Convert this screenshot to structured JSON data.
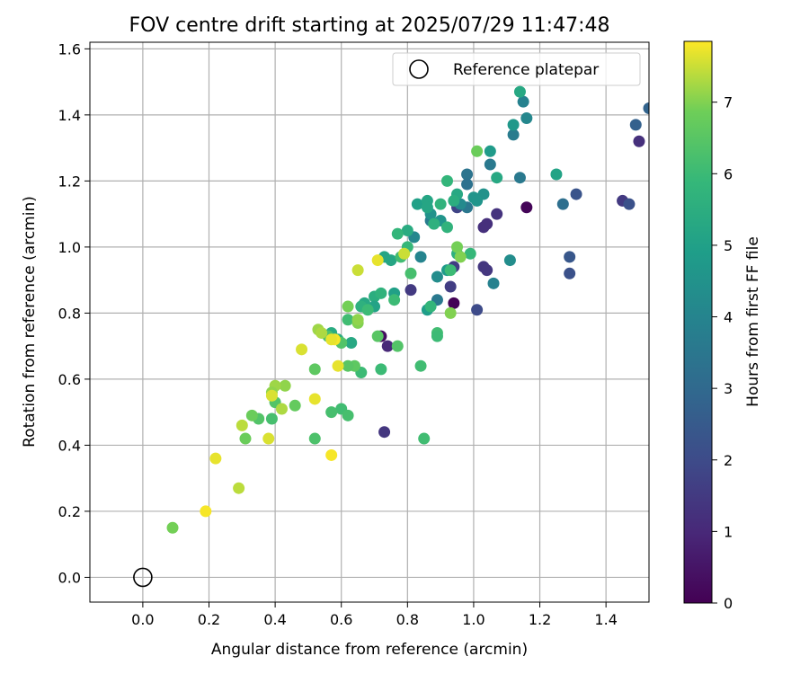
{
  "chart_data": {
    "type": "scatter",
    "title": "FOV centre drift starting at 2025/07/29 11:47:48",
    "xlabel": "Angular distance from reference (arcmin)",
    "ylabel": "Rotation from reference (arcmin)",
    "xlim": [
      -0.16,
      1.53
    ],
    "ylim": [
      -0.075,
      1.62
    ],
    "xticks": [
      "0.0",
      "0.2",
      "0.4",
      "0.6",
      "0.8",
      "1.0",
      "1.2",
      "1.4"
    ],
    "yticks": [
      "0.0",
      "0.2",
      "0.4",
      "0.6",
      "0.8",
      "1.0",
      "1.2",
      "1.4",
      "1.6"
    ],
    "grid": true,
    "legend": {
      "position": "upper-right",
      "entries": [
        "Reference platepar"
      ]
    },
    "colorbar": {
      "label": "Hours from first FF file",
      "colormap": "viridis",
      "range": [
        0,
        7.85
      ],
      "ticks": [
        "0",
        "1",
        "2",
        "3",
        "4",
        "5",
        "6",
        "7"
      ]
    },
    "reference_point": {
      "x": 0.0,
      "y": 0.0
    },
    "points": [
      [
        1.16,
        1.12,
        0.1
      ],
      [
        0.94,
        0.83,
        0.05
      ],
      [
        1.5,
        1.32,
        1.2
      ],
      [
        1.45,
        1.14,
        1.5
      ],
      [
        0.73,
        0.44,
        1.4
      ],
      [
        0.74,
        0.7,
        1.0
      ],
      [
        0.72,
        0.73,
        0.3
      ],
      [
        1.03,
        1.06,
        1.2
      ],
      [
        1.04,
        1.07,
        1.2
      ],
      [
        1.07,
        1.1,
        1.3
      ],
      [
        1.03,
        0.94,
        1.4
      ],
      [
        1.04,
        0.93,
        1.4
      ],
      [
        0.94,
        0.94,
        1.6
      ],
      [
        0.93,
        0.88,
        1.6
      ],
      [
        0.81,
        0.87,
        1.5
      ],
      [
        0.95,
        1.12,
        1.8
      ],
      [
        1.01,
        0.81,
        2.0
      ],
      [
        1.47,
        1.13,
        2.2
      ],
      [
        1.31,
        1.16,
        2.3
      ],
      [
        1.29,
        0.97,
        2.4
      ],
      [
        1.29,
        0.92,
        2.2
      ],
      [
        1.53,
        1.42,
        2.8
      ],
      [
        1.49,
        1.37,
        2.7
      ],
      [
        1.27,
        1.13,
        3.2
      ],
      [
        0.89,
        0.84,
        3.6
      ],
      [
        1.06,
        0.89,
        3.9
      ],
      [
        1.14,
        1.21,
        3.6
      ],
      [
        1.12,
        1.34,
        3.7
      ],
      [
        1.05,
        1.25,
        3.6
      ],
      [
        0.98,
        1.22,
        3.4
      ],
      [
        0.98,
        1.19,
        3.3
      ],
      [
        0.98,
        1.12,
        3.5
      ],
      [
        0.87,
        1.08,
        3.7
      ],
      [
        0.84,
        0.97,
        4.0
      ],
      [
        0.82,
        1.03,
        4.1
      ],
      [
        0.96,
        1.13,
        4.2
      ],
      [
        1.16,
        1.39,
        4.1
      ],
      [
        1.15,
        1.44,
        3.9
      ],
      [
        1.11,
        0.96,
        4.3
      ],
      [
        1.12,
        1.37,
        4.7
      ],
      [
        1.05,
        1.29,
        4.8
      ],
      [
        1.03,
        1.16,
        4.5
      ],
      [
        1.0,
        1.15,
        4.6
      ],
      [
        1.01,
        1.14,
        4.6
      ],
      [
        0.9,
        1.08,
        4.6
      ],
      [
        0.87,
        1.1,
        4.5
      ],
      [
        0.89,
        0.91,
        4.3
      ],
      [
        0.92,
        0.93,
        4.8
      ],
      [
        0.86,
        0.81,
        4.9
      ],
      [
        0.83,
        1.13,
        5.0
      ],
      [
        0.86,
        1.14,
        5.2
      ],
      [
        1.14,
        1.47,
        5.3
      ],
      [
        1.07,
        1.21,
        5.3
      ],
      [
        1.25,
        1.22,
        5.1
      ],
      [
        0.95,
        1.16,
        5.3
      ],
      [
        0.94,
        1.14,
        5.5
      ],
      [
        0.86,
        1.12,
        5.2
      ],
      [
        0.88,
        1.07,
        5.6
      ],
      [
        0.8,
        1.05,
        5.4
      ],
      [
        0.76,
        0.86,
        5.0
      ],
      [
        0.73,
        0.97,
        5.2
      ],
      [
        0.75,
        0.96,
        5.2
      ],
      [
        0.7,
        0.85,
        5.5
      ],
      [
        0.7,
        0.82,
        5.1
      ],
      [
        0.67,
        0.83,
        5.3
      ],
      [
        0.66,
        0.82,
        5.6
      ],
      [
        0.63,
        0.71,
        5.3
      ],
      [
        0.57,
        0.74,
        5.4
      ],
      [
        0.59,
        0.72,
        5.5
      ],
      [
        0.72,
        0.86,
        5.7
      ],
      [
        0.77,
        1.04,
        5.8
      ],
      [
        0.8,
        1.0,
        5.9
      ],
      [
        0.92,
        1.06,
        5.7
      ],
      [
        0.92,
        1.2,
        5.8
      ],
      [
        0.9,
        1.13,
        5.7
      ],
      [
        0.99,
        0.98,
        5.9
      ],
      [
        0.95,
        0.98,
        5.6
      ],
      [
        0.93,
        0.93,
        6.0
      ],
      [
        0.87,
        0.82,
        5.8
      ],
      [
        0.89,
        0.74,
        6.1
      ],
      [
        0.89,
        0.73,
        6.0
      ],
      [
        0.84,
        0.64,
        6.1
      ],
      [
        0.85,
        0.42,
        6.1
      ],
      [
        0.81,
        0.92,
        6.2
      ],
      [
        0.78,
        0.97,
        6.1
      ],
      [
        0.76,
        0.84,
        6.0
      ],
      [
        0.68,
        0.81,
        6.0
      ],
      [
        0.66,
        0.62,
        6.0
      ],
      [
        0.72,
        0.63,
        6.0
      ],
      [
        0.62,
        0.78,
        6.1
      ],
      [
        0.6,
        0.71,
        6.4
      ],
      [
        0.56,
        0.73,
        6.3
      ],
      [
        0.6,
        0.51,
        6.1
      ],
      [
        0.57,
        0.5,
        6.2
      ],
      [
        0.62,
        0.49,
        6.2
      ],
      [
        0.52,
        0.42,
        6.3
      ],
      [
        0.39,
        0.48,
        6.2
      ],
      [
        0.4,
        0.53,
        6.4
      ],
      [
        0.35,
        0.48,
        6.4
      ],
      [
        0.77,
        0.7,
        6.4
      ],
      [
        0.71,
        0.73,
        6.5
      ],
      [
        0.64,
        0.64,
        6.6
      ],
      [
        0.62,
        0.64,
        6.5
      ],
      [
        0.52,
        0.63,
        6.6
      ],
      [
        0.46,
        0.52,
        6.7
      ],
      [
        0.33,
        0.49,
        6.8
      ],
      [
        0.31,
        0.42,
        6.8
      ],
      [
        0.09,
        0.15,
        6.9
      ],
      [
        0.95,
        1.0,
        6.9
      ],
      [
        0.96,
        0.97,
        7.0
      ],
      [
        1.01,
        1.29,
        6.8
      ],
      [
        0.93,
        0.8,
        7.0
      ],
      [
        0.65,
        0.77,
        7.0
      ],
      [
        0.65,
        0.78,
        7.1
      ],
      [
        0.62,
        0.82,
        6.9
      ],
      [
        0.53,
        0.75,
        7.2
      ],
      [
        0.54,
        0.74,
        7.3
      ],
      [
        0.43,
        0.58,
        7.1
      ],
      [
        0.4,
        0.58,
        7.2
      ],
      [
        0.39,
        0.56,
        7.1
      ],
      [
        0.42,
        0.51,
        7.3
      ],
      [
        0.3,
        0.46,
        7.4
      ],
      [
        0.29,
        0.27,
        7.4
      ],
      [
        0.79,
        0.98,
        7.5
      ],
      [
        0.65,
        0.93,
        7.5
      ],
      [
        0.71,
        0.96,
        7.7
      ],
      [
        0.58,
        0.72,
        7.8
      ],
      [
        0.59,
        0.64,
        7.7
      ],
      [
        0.57,
        0.72,
        7.7
      ],
      [
        0.48,
        0.69,
        7.6
      ],
      [
        0.52,
        0.54,
        7.7
      ],
      [
        0.38,
        0.42,
        7.6
      ],
      [
        0.57,
        0.37,
        7.8
      ],
      [
        0.22,
        0.36,
        7.7
      ],
      [
        0.19,
        0.2,
        7.8
      ],
      [
        0.39,
        0.55,
        7.6
      ]
    ]
  }
}
